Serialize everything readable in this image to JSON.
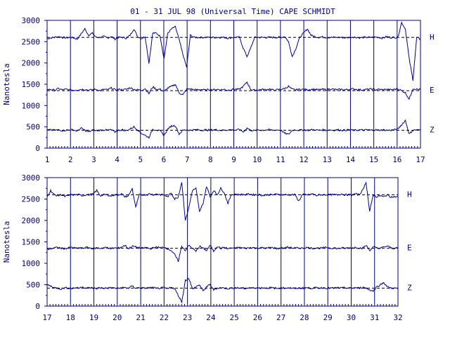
{
  "title": "01 - 31 JUL 98 (Universal Time) CAPE SCHMIDT",
  "colors": {
    "axis": "#000080",
    "trace": "#0000a0",
    "baseline": "#000000",
    "background": "#ffffff"
  },
  "chart_data": [
    {
      "type": "line",
      "ylabel": "Nanotesla",
      "ylim": [
        0,
        3000
      ],
      "yticks": [
        0,
        500,
        1000,
        1500,
        2000,
        2500,
        3000
      ],
      "xlim": [
        1,
        17
      ],
      "xticks": [
        1,
        2,
        3,
        4,
        5,
        6,
        7,
        8,
        9,
        10,
        11,
        12,
        13,
        14,
        15,
        16,
        17
      ],
      "grid": "vertical day lines",
      "series": [
        {
          "name": "H",
          "baseline": 2600,
          "values": [
            2570,
            2590,
            2600,
            2620,
            2600,
            2590,
            2600,
            2590,
            2560,
            2680,
            2800,
            2650,
            2700,
            2600,
            2600,
            2620,
            2590,
            2620,
            2560,
            2600,
            2600,
            2580,
            2650,
            2800,
            2620,
            2570,
            2620,
            2000,
            2700,
            2700,
            2620,
            2100,
            2700,
            2800,
            2850,
            2550,
            2200,
            1900,
            2650,
            2600,
            2600,
            2600,
            2600,
            2600,
            2600,
            2600,
            2600,
            2600,
            2580,
            2600,
            2600,
            2600,
            2350,
            2150,
            2350,
            2600,
            2600,
            2600,
            2600,
            2600,
            2600,
            2600,
            2600,
            2620,
            2500,
            2150,
            2350,
            2600,
            2700,
            2800,
            2650,
            2620,
            2600,
            2610,
            2600,
            2600,
            2600,
            2600,
            2600,
            2590,
            2600,
            2610,
            2600,
            2590,
            2600,
            2600,
            2600,
            2610,
            2600,
            2580,
            2620,
            2600,
            2600,
            2600,
            2950,
            2800,
            2100,
            1600,
            2600,
            2550
          ]
        },
        {
          "name": "E",
          "baseline": 1350,
          "values": [
            1370,
            1380,
            1360,
            1400,
            1370,
            1380,
            1370,
            1360,
            1370,
            1380,
            1380,
            1360,
            1370,
            1380,
            1350,
            1380,
            1370,
            1410,
            1370,
            1380,
            1370,
            1380,
            1420,
            1380,
            1370,
            1360,
            1400,
            1280,
            1440,
            1380,
            1380,
            1330,
            1410,
            1450,
            1500,
            1300,
            1250,
            1380,
            1390,
            1370,
            1370,
            1380,
            1360,
            1380,
            1370,
            1380,
            1370,
            1380,
            1360,
            1380,
            1380,
            1380,
            1450,
            1550,
            1380,
            1360,
            1370,
            1380,
            1370,
            1390,
            1360,
            1370,
            1380,
            1400,
            1450,
            1380,
            1370,
            1380,
            1380,
            1370,
            1380,
            1380,
            1370,
            1380,
            1370,
            1390,
            1380,
            1370,
            1380,
            1370,
            1380,
            1390,
            1380,
            1370,
            1370,
            1380,
            1390,
            1370,
            1380,
            1370,
            1380,
            1370,
            1380,
            1390,
            1350,
            1300,
            1150,
            1400,
            1380,
            1380
          ]
        },
        {
          "name": "Z",
          "baseline": 420,
          "values": [
            420,
            430,
            420,
            430,
            410,
            420,
            430,
            430,
            400,
            470,
            420,
            380,
            420,
            410,
            420,
            430,
            420,
            430,
            380,
            420,
            430,
            410,
            450,
            500,
            430,
            350,
            300,
            250,
            440,
            430,
            400,
            300,
            450,
            520,
            530,
            330,
            420,
            430,
            420,
            430,
            430,
            420,
            430,
            420,
            430,
            430,
            420,
            420,
            430,
            430,
            420,
            440,
            380,
            470,
            420,
            410,
            430,
            420,
            430,
            430,
            420,
            430,
            420,
            350,
            320,
            420,
            430,
            420,
            430,
            420,
            430,
            430,
            420,
            430,
            420,
            430,
            420,
            430,
            420,
            420,
            430,
            420,
            420,
            430,
            420,
            430,
            420,
            430,
            420,
            430,
            420,
            420,
            430,
            450,
            550,
            650,
            330,
            420,
            430,
            420
          ]
        }
      ]
    },
    {
      "type": "line",
      "ylabel": "Nanotesla",
      "ylim": [
        0,
        3000
      ],
      "yticks": [
        0,
        500,
        1000,
        1500,
        2000,
        2500,
        3000
      ],
      "xlim": [
        17,
        32
      ],
      "xticks": [
        17,
        18,
        19,
        20,
        21,
        22,
        23,
        24,
        25,
        26,
        27,
        28,
        29,
        30,
        31,
        32
      ],
      "grid": "vertical day lines",
      "series": [
        {
          "name": "H",
          "baseline": 2600,
          "values": [
            2550,
            2700,
            2600,
            2580,
            2600,
            2560,
            2580,
            2600,
            2600,
            2600,
            2580,
            2600,
            2600,
            2620,
            2700,
            2580,
            2600,
            2600,
            2570,
            2600,
            2600,
            2620,
            2550,
            2580,
            2750,
            2300,
            2600,
            2600,
            2600,
            2620,
            2600,
            2620,
            2600,
            2600,
            2550,
            2650,
            2500,
            2550,
            2900,
            2000,
            2300,
            2700,
            2750,
            2200,
            2400,
            2800,
            2550,
            2700,
            2600,
            2750,
            2650,
            2400,
            2600,
            2620,
            2600,
            2610,
            2600,
            2620,
            2600,
            2600,
            2600,
            2580,
            2600,
            2600,
            2600,
            2620,
            2600,
            2600,
            2600,
            2600,
            2600,
            2450,
            2600,
            2600,
            2600,
            2620,
            2580,
            2600,
            2600,
            2600,
            2600,
            2600,
            2600,
            2620,
            2600,
            2600,
            2600,
            2620,
            2600,
            2700,
            2900,
            2200,
            2600,
            2550,
            2580,
            2550,
            2600,
            2550,
            2550,
            2550
          ]
        },
        {
          "name": "E",
          "baseline": 1350,
          "values": [
            1320,
            1340,
            1360,
            1370,
            1350,
            1340,
            1360,
            1370,
            1350,
            1360,
            1350,
            1370,
            1360,
            1340,
            1360,
            1350,
            1360,
            1370,
            1340,
            1360,
            1350,
            1380,
            1420,
            1340,
            1400,
            1380,
            1360,
            1350,
            1370,
            1340,
            1360,
            1380,
            1360,
            1380,
            1340,
            1300,
            1200,
            1050,
            1400,
            1300,
            1420,
            1350,
            1280,
            1400,
            1350,
            1300,
            1420,
            1280,
            1400,
            1350,
            1370,
            1340,
            1360,
            1350,
            1370,
            1360,
            1350,
            1360,
            1370,
            1350,
            1360,
            1360,
            1350,
            1370,
            1360,
            1340,
            1360,
            1350,
            1380,
            1360,
            1350,
            1360,
            1350,
            1370,
            1360,
            1350,
            1360,
            1350,
            1360,
            1370,
            1350,
            1360,
            1340,
            1360,
            1350,
            1360,
            1360,
            1370,
            1360,
            1350,
            1420,
            1300,
            1380,
            1360,
            1350,
            1380,
            1400,
            1360,
            1350,
            1360
          ]
        },
        {
          "name": "Z",
          "baseline": 420,
          "values": [
            500,
            470,
            430,
            420,
            400,
            430,
            420,
            410,
            430,
            420,
            450,
            420,
            430,
            420,
            410,
            430,
            420,
            420,
            430,
            420,
            410,
            430,
            430,
            420,
            470,
            420,
            430,
            420,
            420,
            430,
            430,
            410,
            420,
            430,
            400,
            450,
            400,
            250,
            100,
            600,
            650,
            400,
            450,
            500,
            350,
            450,
            500,
            380,
            420,
            430,
            420,
            410,
            420,
            430,
            420,
            420,
            410,
            430,
            420,
            430,
            420,
            430,
            420,
            430,
            420,
            410,
            430,
            420,
            430,
            420,
            410,
            420,
            420,
            430,
            420,
            420,
            430,
            420,
            430,
            420,
            420,
            420,
            430,
            420,
            430,
            420,
            420,
            430,
            420,
            440,
            420,
            380,
            350,
            450,
            500,
            550,
            450,
            420,
            420,
            410
          ]
        }
      ]
    }
  ]
}
